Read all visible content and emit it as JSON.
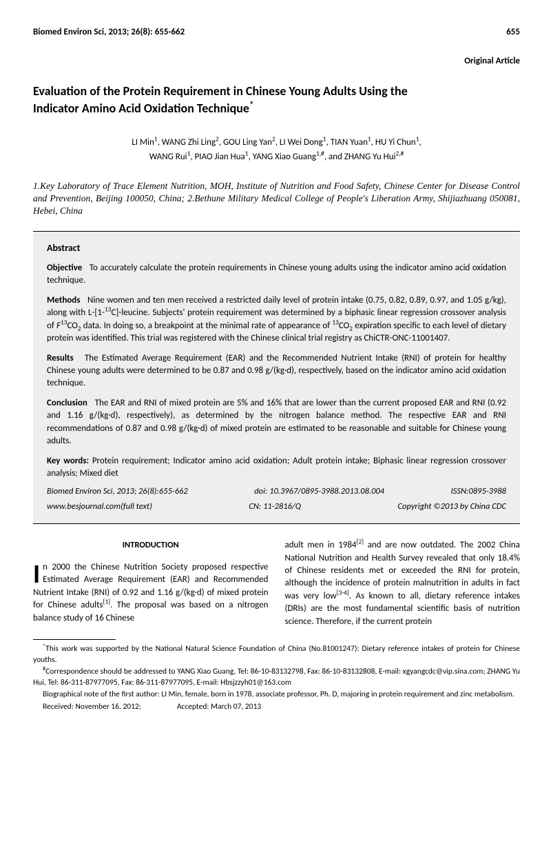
{
  "header": {
    "journal": "Biomed Environ Sci, 2013; 26(8): 655-662",
    "page": "655"
  },
  "article_type": "Original Article",
  "title_line1": "Evaluation of the Protein Requirement in Chinese Young Adults Using the",
  "title_line2": "Indicator Amino Acid Oxidation Technique",
  "title_sup": "*",
  "authors_line1": "LI Min",
  "authors_sup1": "1",
  "authors_c1": ", WANG Zhi Ling",
  "authors_sup2": "2",
  "authors_c2": ", GOU Ling Yan",
  "authors_sup3": "2",
  "authors_c3": ", LI Wei Dong",
  "authors_sup4": "1",
  "authors_c4": ", TIAN Yuan",
  "authors_sup5": "1",
  "authors_c5": ", HU Yi Chun",
  "authors_sup6": "1",
  "authors_c6": ",",
  "authors_line2a": "WANG Rui",
  "authors_sup7": "1",
  "authors_c7": ", PIAO Jian Hua",
  "authors_sup8": "1",
  "authors_c8": ", YANG Xiao Guang",
  "authors_sup9": "1,#",
  "authors_c9": ", and ZHANG Yu Hui",
  "authors_sup10": "2,#",
  "affiliations": "1.Key Laboratory of Trace Element Nutrition, MOH, Institute of Nutrition and Food Safety, Chinese Center for Disease Control and Prevention, Beijing 100050, China; 2.Bethune Military Medical College of People's Liberation Army, Shijiazhuang 050081, Hebei, China",
  "abstract": {
    "heading": "Abstract",
    "objective_label": "Objective",
    "objective": "To accurately calculate the protein requirements in Chinese young adults using the indicator amino acid oxidation technique.",
    "methods_label": "Methods",
    "methods_a": "Nine women and ten men received a restricted daily level of protein intake (0.75, 0.82, 0.89, 0.97, and 1.05 g/kg), along with L-[1-",
    "methods_sup1": "13",
    "methods_b": "C]-leucine. Subjects' protein requirement was determined by a biphasic linear regression crossover analysis of ",
    "methods_i1": "F",
    "methods_sup2": "13",
    "methods_c": "CO",
    "methods_sub1": "2",
    "methods_d": " data. In doing so, a breakpoint at the minimal rate of appearance of ",
    "methods_sup3": "13",
    "methods_e": "CO",
    "methods_sub2": "2",
    "methods_f": " expiration specific to each level of dietary protein was identified. This trial was registered with the Chinese clinical trial registry as ChiCTR-ONC-11001407.",
    "results_label": "Results",
    "results": "The Estimated Average Requirement (EAR) and the Recommended Nutrient Intake (RNI) of protein for healthy Chinese young adults were determined to be 0.87 and 0.98 g/(kg·d), respectively, based on the indicator amino acid oxidation technique.",
    "conclusion_label": "Conclusion",
    "conclusion": "The EAR and RNI of mixed protein are 5% and 16% that are lower than the current proposed EAR and RNI (0.92 and 1.16 g/(kg·d), respectively), as determined by the nitrogen balance method. The respective EAR and RNI recommendations of 0.87 and 0.98 g/(kg·d) of mixed protein are estimated to be reasonable and suitable for Chinese young adults.",
    "keywords_label": "Key words:",
    "keywords": " Protein requirement; Indicator amino acid oxidation; Adult protein intake; Biphasic linear regression crossover analysis; Mixed diet",
    "cite1_l": "Biomed Environ Sci, 2013; 26(8):655-662",
    "cite1_m": "doi: 10.3967/0895-3988.2013.08.004",
    "cite1_r": "ISSN:0895-3988",
    "cite2_l": "www.besjournal.com(full text)",
    "cite2_m": "CN: 11-2816/Q",
    "cite2_r": "Copyright ©2013 by China CDC"
  },
  "intro_heading": "INTRODUCTION",
  "intro_dropcap": "I",
  "intro_col1_a": "n 2000 the Chinese Nutrition Society proposed respective Estimated Average Requirement (EAR) and Recommended Nutrient Intake (RNI) of 0.92 and 1.16 g/(kg·d) of mixed protein for Chinese adults",
  "intro_col1_sup1": "[1]",
  "intro_col1_b": ". The proposal was based on a nitrogen balance study of 16 Chinese",
  "intro_col2_a": "adult men in 1984",
  "intro_col2_sup1": "[2]",
  "intro_col2_b": " and are now outdated. The 2002 China National Nutrition and Health Survey revealed that only 18.4% of Chinese residents met or exceeded the RNI for protein, although the incidence of protein malnutrition in adults in fact was very low",
  "intro_col2_sup2": "[3-4]",
  "intro_col2_c": ". As known to all, dietary reference intakes (DRIs) are the most fundamental scientific basis of nutrition science. Therefore, if the current protein",
  "footnotes": {
    "star": "*",
    "f1": "This work was supported by the National Natural Science Foundation of China (No.81001247): Dietary reference intakes of protein for Chinese youths.",
    "hash": "#",
    "f2": "Correspondence should be addressed to YANG Xiao Guang, Tel: 86-10-83132798, Fax: 86-10-83132808, E-mail: xgyangcdc@vip.sina.com; ZHANG Yu Hui, Tel: 86-311-87977095, Fax: 86-311-87977095, E-mail: Hbsjzzyh01@163.com",
    "f3": "Biographical note of the first author: LI Min, female, born in 1978, associate professor, Ph. D, majoring in protein requirement and zinc metabolism.",
    "f4a": "Received: November 16, 2012;",
    "f4b": "Accepted: March 07, 2013"
  }
}
